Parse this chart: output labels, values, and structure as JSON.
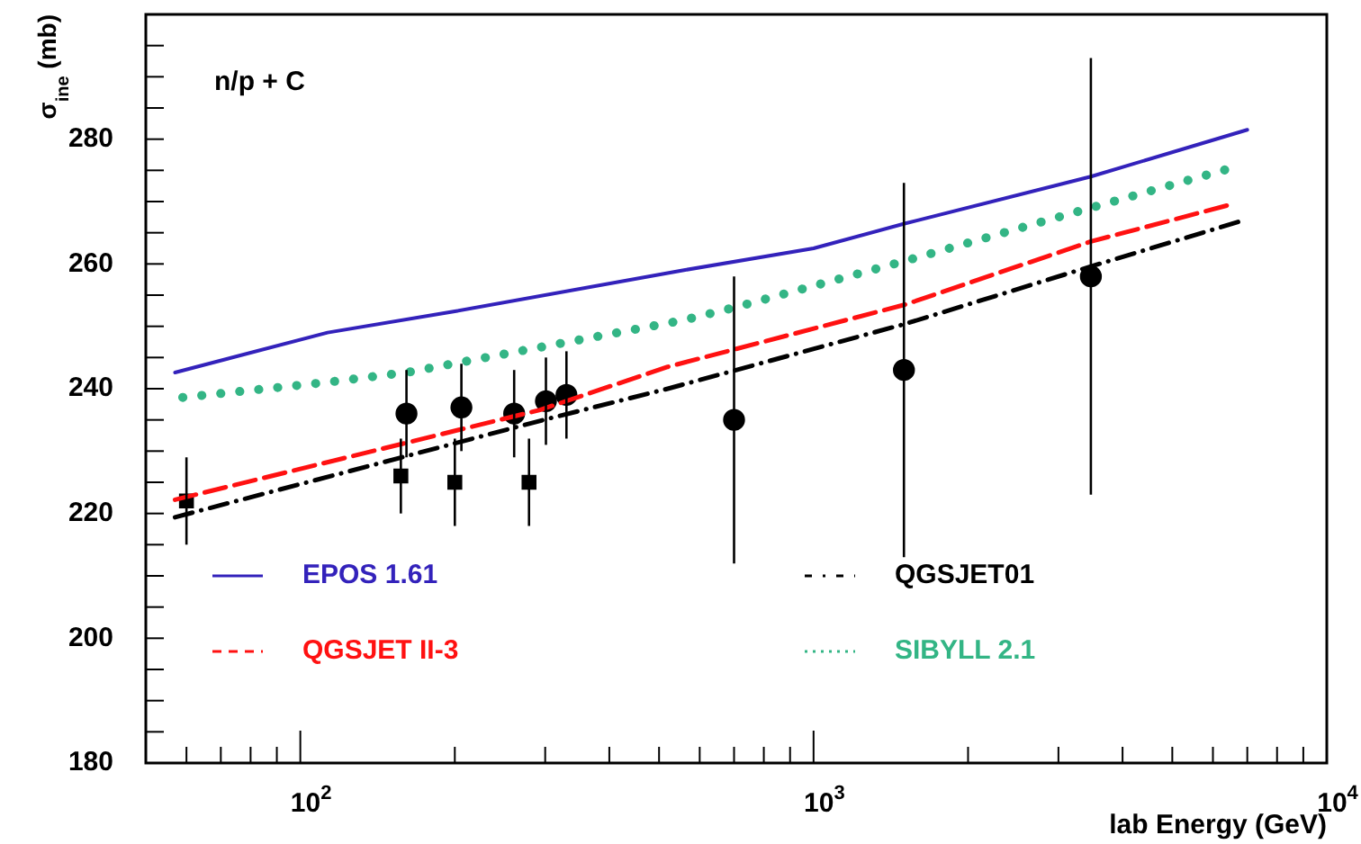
{
  "chart_data": {
    "type": "line",
    "xlabel": "lab Energy (GeV)",
    "ylabel": "σ$_{ine}$ (mb)",
    "annotations": [
      "n/p + C"
    ],
    "log": "x",
    "grid": false,
    "legend": "bottom",
    "xlim": [
      50,
      10000
    ],
    "xticks": [
      {
        "value": 60,
        "label": null
      },
      {
        "value": 70,
        "label": null
      },
      {
        "value": 80,
        "label": null
      },
      {
        "value": 90,
        "label": null
      },
      {
        "value": 100,
        "label": "10$^{2}$"
      },
      {
        "value": 200,
        "label": null
      },
      {
        "value": 300,
        "label": null
      },
      {
        "value": 400,
        "label": null
      },
      {
        "value": 500,
        "label": null
      },
      {
        "value": 600,
        "label": null
      },
      {
        "value": 700,
        "label": null
      },
      {
        "value": 800,
        "label": null
      },
      {
        "value": 900,
        "label": null
      },
      {
        "value": 1000,
        "label": "10$^{3}$"
      },
      {
        "value": 2000,
        "label": null
      },
      {
        "value": 3000,
        "label": null
      },
      {
        "value": 4000,
        "label": null
      },
      {
        "value": 5000,
        "label": null
      },
      {
        "value": 6000,
        "label": null
      },
      {
        "value": 7000,
        "label": null
      },
      {
        "value": 8000,
        "label": null
      },
      {
        "value": 9000,
        "label": null
      },
      {
        "value": 10000,
        "label": "10$^{4}$"
      }
    ],
    "ylim": [
      180,
      300
    ],
    "yticks": [
      180,
      {
        "value": 185,
        "label": null
      },
      {
        "value": 190,
        "label": null
      },
      {
        "value": 195,
        "label": null
      },
      200,
      {
        "value": 205,
        "label": null
      },
      {
        "value": 210,
        "label": null
      },
      {
        "value": 215,
        "label": null
      },
      220,
      {
        "value": 225,
        "label": null
      },
      {
        "value": 230,
        "label": null
      },
      {
        "value": 235,
        "label": null
      },
      240,
      {
        "value": 245,
        "label": null
      },
      {
        "value": 250,
        "label": null
      },
      {
        "value": 255,
        "label": null
      },
      260,
      {
        "value": 265,
        "label": null
      },
      {
        "value": 270,
        "label": null
      },
      {
        "value": 275,
        "label": null
      },
      280,
      {
        "value": 285,
        "label": null
      },
      {
        "value": 290,
        "label": null
      },
      {
        "value": 295,
        "label": null
      }
    ],
    "series": [
      {
        "name": "EPOS 1.61",
        "line_style": "solid",
        "color": "#3322bb",
        "x": [
          57,
          113,
          200,
          559,
          1000,
          1510,
          3470,
          7000
        ],
        "values": [
          242.6,
          249,
          252.4,
          259,
          262.5,
          266.5,
          274,
          281.5
        ]
      },
      {
        "name": "QGSJET II-3",
        "line_style": "dashed",
        "color": "#ff1111",
        "x": [
          57,
          293,
          520,
          1510,
          3470,
          6620
        ],
        "values": [
          222.2,
          236.6,
          243.5,
          253.5,
          263.6,
          269.7
        ]
      },
      {
        "name": "QGSJET01",
        "line_style": "dashdot",
        "color": "#000000",
        "x": [
          57,
          301,
          520,
          1510,
          3470,
          6950
        ],
        "values": [
          219.4,
          235.1,
          240,
          250.4,
          259.6,
          267.1
        ]
      },
      {
        "name": "SIBYLL 2.1",
        "line_style": "dotted",
        "color": "#33b585",
        "x": [
          59,
          112,
          161,
          559,
          700,
          1510,
          3470,
          6730
        ],
        "values": [
          238.6,
          241,
          242.6,
          251,
          253,
          260.5,
          269,
          275.7
        ]
      },
      {
        "type": "scatter",
        "marker": "square",
        "color": "#000000",
        "x": [
          60,
          157,
          200,
          279
        ],
        "values": [
          222,
          226,
          225,
          225
        ],
        "errors": [
          7,
          6,
          7,
          7
        ]
      },
      {
        "type": "scatter",
        "marker": "circle",
        "color": "#000000",
        "x": [
          161,
          206,
          261,
          301,
          330
        ],
        "values": [
          236,
          237,
          236,
          238,
          239
        ],
        "errors": [
          7,
          7,
          7,
          7,
          7
        ]
      },
      {
        "type": "scatter",
        "marker": "circle",
        "color": "#000000",
        "x": [
          700,
          1500,
          3470
        ],
        "values": [
          235,
          243,
          258
        ],
        "errors": [
          23,
          30,
          35
        ]
      }
    ]
  }
}
